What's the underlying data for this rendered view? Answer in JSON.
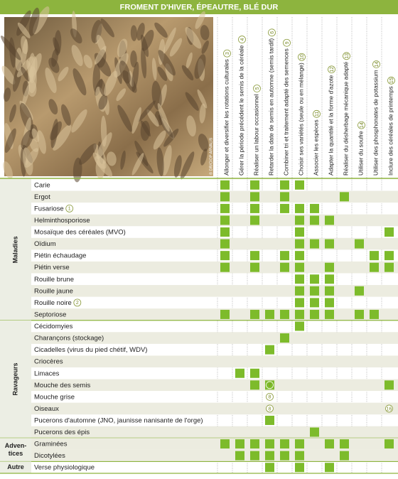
{
  "header": {
    "title": "FROMENT D'HIVER, ÉPEAUTRE, BLÉ DUR"
  },
  "photo": {
    "credit": "© DR/CIOP ARVALIS"
  },
  "columns": [
    {
      "label": "Allonger et diversifier les rotations culturales",
      "note": "3"
    },
    {
      "label": "Gérer la période précédent le semis de la céréale",
      "note": "4"
    },
    {
      "label": "Réaliser un labour occasionnel",
      "note": "5"
    },
    {
      "label": "Retarder la date de semis en automne (semis tardif)",
      "note": "6"
    },
    {
      "label": "Combiner tri et traitement adapté des semences",
      "note": "9"
    },
    {
      "label": "Choisir ses variétés (seule ou en mélange)",
      "note": "10"
    },
    {
      "label": "Associer les espèces",
      "note": "11"
    },
    {
      "label": "Adapter la quantité et la forme d'azote",
      "note": "12"
    },
    {
      "label": "Réaliser du désherbage mécanique adapté",
      "note": "13"
    },
    {
      "label": "Utiliser du soufre",
      "note": "14"
    },
    {
      "label": "Utiliser des phosphonates de potassium",
      "note": "14"
    },
    {
      "label": "Inclure des céréales de printemps",
      "note": "15"
    }
  ],
  "groups": [
    {
      "label": [
        "Maladies"
      ],
      "rotated": true,
      "rows": [
        {
          "label": "Carie",
          "cells": [
            true,
            false,
            true,
            false,
            true,
            true,
            false,
            false,
            false,
            false,
            false,
            false
          ]
        },
        {
          "label": "Ergot",
          "cells": [
            true,
            false,
            true,
            false,
            true,
            false,
            false,
            false,
            true,
            false,
            false,
            false
          ]
        },
        {
          "label": "Fusariose",
          "note": "1",
          "cells": [
            true,
            false,
            true,
            false,
            true,
            true,
            true,
            false,
            false,
            false,
            false,
            false
          ]
        },
        {
          "label": "Helminthosporiose",
          "cells": [
            true,
            false,
            true,
            false,
            false,
            true,
            true,
            true,
            false,
            false,
            false,
            false
          ]
        },
        {
          "label": "Mosaïque des céréales (MVO)",
          "cells": [
            true,
            false,
            false,
            false,
            false,
            true,
            false,
            false,
            false,
            false,
            false,
            true
          ]
        },
        {
          "label": "Oïdium",
          "cells": [
            true,
            false,
            false,
            false,
            false,
            true,
            true,
            true,
            false,
            true,
            false,
            false
          ]
        },
        {
          "label": "Piétin échaudage",
          "cells": [
            true,
            false,
            true,
            false,
            true,
            true,
            false,
            false,
            false,
            false,
            true,
            true
          ]
        },
        {
          "label": "Piétin verse",
          "cells": [
            true,
            false,
            true,
            false,
            true,
            true,
            false,
            true,
            false,
            false,
            true,
            true
          ]
        },
        {
          "label": "Rouille brune",
          "cells": [
            false,
            false,
            false,
            false,
            false,
            true,
            true,
            true,
            false,
            false,
            false,
            false
          ]
        },
        {
          "label": "Rouille jaune",
          "cells": [
            false,
            false,
            false,
            false,
            false,
            true,
            true,
            true,
            false,
            true,
            false,
            false
          ]
        },
        {
          "label": "Rouille noire",
          "note": "2",
          "cells": [
            false,
            false,
            false,
            false,
            false,
            true,
            true,
            true,
            false,
            false,
            false,
            false
          ]
        },
        {
          "label": "Septoriose",
          "cells": [
            true,
            false,
            true,
            true,
            true,
            true,
            true,
            true,
            false,
            true,
            true,
            false
          ]
        }
      ]
    },
    {
      "label": [
        "Ravageurs"
      ],
      "rotated": true,
      "rows": [
        {
          "label": "Cécidomyies",
          "cells": [
            false,
            false,
            false,
            false,
            false,
            true,
            false,
            false,
            false,
            false,
            false,
            false
          ]
        },
        {
          "label": "Charançons (stockage)",
          "cells": [
            false,
            false,
            false,
            false,
            true,
            false,
            false,
            false,
            false,
            false,
            false,
            false
          ]
        },
        {
          "label": "Cicadelles (virus du pied chétif, WDV)",
          "cells": [
            false,
            false,
            false,
            true,
            false,
            false,
            false,
            false,
            false,
            false,
            false,
            false
          ]
        },
        {
          "label": "Criocères",
          "cells": [
            false,
            false,
            false,
            false,
            false,
            false,
            false,
            false,
            false,
            false,
            false,
            false
          ]
        },
        {
          "label": "Limaces",
          "cells": [
            false,
            true,
            true,
            false,
            false,
            false,
            false,
            false,
            false,
            false,
            false,
            false
          ]
        },
        {
          "label": "Mouche des semis",
          "cells": [
            false,
            false,
            true,
            {
              "note": "7",
              "filled": true
            },
            false,
            false,
            false,
            false,
            false,
            false,
            false,
            true
          ]
        },
        {
          "label": "Mouche grise",
          "cells": [
            false,
            false,
            false,
            {
              "note": "8"
            },
            false,
            false,
            false,
            false,
            false,
            false,
            false,
            false
          ]
        },
        {
          "label": "Oiseaux",
          "cells": [
            false,
            false,
            false,
            {
              "note": "8"
            },
            false,
            false,
            false,
            false,
            false,
            false,
            false,
            {
              "note": "16"
            }
          ]
        },
        {
          "label": "Pucerons d'automne (JNO, jaunisse nanisante de l'orge)",
          "cells": [
            false,
            false,
            false,
            true,
            false,
            false,
            false,
            false,
            false,
            false,
            false,
            false
          ]
        },
        {
          "label": "Pucerons des épis",
          "cells": [
            false,
            false,
            false,
            false,
            false,
            false,
            true,
            false,
            false,
            false,
            false,
            false
          ]
        }
      ]
    },
    {
      "label": [
        "Adven-",
        "tices"
      ],
      "rows": [
        {
          "label": "Graminées",
          "cells": [
            true,
            true,
            true,
            true,
            true,
            true,
            false,
            true,
            true,
            false,
            false,
            true
          ]
        },
        {
          "label": "Dicotylées",
          "cells": [
            false,
            true,
            true,
            true,
            true,
            true,
            false,
            false,
            true,
            false,
            false,
            false
          ]
        }
      ]
    },
    {
      "label": [
        "Autre"
      ],
      "rows": [
        {
          "label": "Verse physiologique",
          "cells": [
            false,
            false,
            false,
            true,
            false,
            true,
            false,
            true,
            false,
            false,
            false,
            false
          ]
        }
      ]
    }
  ]
}
